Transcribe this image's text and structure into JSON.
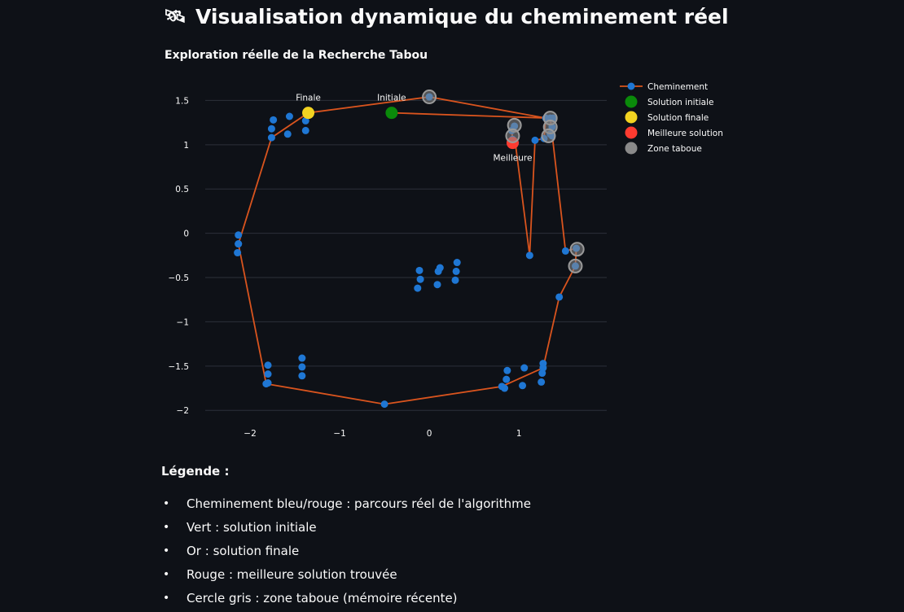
{
  "page": {
    "title_icon": "satellite-icon",
    "title": "Visualisation dynamique du cheminement réel"
  },
  "chart_data": {
    "type": "scatter",
    "title": "Exploration réelle de la Recherche Tabou",
    "xlabel": "",
    "ylabel": "",
    "xlim": [
      -2.5,
      1.98
    ],
    "ylim": [
      -2.2,
      1.66
    ],
    "xticks": [
      -2,
      -1,
      0,
      1
    ],
    "xtick_labels": [
      "−2",
      "−1",
      "0",
      "1"
    ],
    "yticks": [
      1.5,
      1,
      0.5,
      0,
      -0.5,
      -1,
      -1.5,
      -2
    ],
    "ytick_labels": [
      "1.5",
      "1",
      "0.5",
      "0",
      "−0.5",
      "−1",
      "−1.5",
      "−2"
    ],
    "grid": "horizontal",
    "legend_position": "top-right",
    "colors": {
      "path_line": "#d9541e",
      "path_marker": "#1f77d4",
      "initial": "#0a8a0a",
      "final": "#f2d321",
      "best": "#ff3b30",
      "tabu": "#8a8a8a"
    },
    "series": [
      {
        "name": "Cheminement",
        "mode": "lines+markers",
        "x": [
          -0.42,
          1.35,
          1.52,
          1.64,
          1.63,
          1.45,
          1.27,
          0.81,
          -0.5,
          -1.82,
          -2.13,
          -1.76,
          -1.35,
          0.0,
          1.3,
          1.28,
          1.18,
          1.12,
          0.96,
          0.93,
          0.92,
          0.95
        ],
        "y": [
          1.36,
          1.3,
          -0.2,
          -0.17,
          -0.37,
          -0.72,
          -1.52,
          -1.73,
          -1.93,
          -1.7,
          -0.12,
          1.08,
          1.36,
          1.54,
          1.3,
          1.07,
          1.05,
          -0.25,
          1.02,
          1.06,
          1.16,
          1.21
        ]
      },
      {
        "name": "Cheminement",
        "mode": "markers",
        "x": [
          -1.74,
          -1.76,
          -1.56,
          -1.58,
          -1.38,
          -1.38,
          -2.13,
          -2.13,
          -2.14,
          0.12,
          0.09,
          0.31,
          -0.11,
          -0.1,
          0.29,
          -0.13,
          0.1,
          0.3,
          -1.8,
          -1.8,
          -1.8,
          -1.42,
          -1.42,
          -1.42,
          0.87,
          0.86,
          0.84,
          1.06,
          1.04,
          1.27,
          1.26,
          1.25,
          1.38,
          1.37,
          1.37,
          1.35
        ],
        "y": [
          1.28,
          1.18,
          1.32,
          1.12,
          1.27,
          1.16,
          -0.02,
          -0.12,
          -0.22,
          -0.39,
          -0.58,
          -0.33,
          -0.42,
          -0.52,
          -0.53,
          -0.62,
          -0.43,
          -0.43,
          -1.49,
          -1.59,
          -1.69,
          -1.41,
          -1.51,
          -1.61,
          -1.55,
          -1.65,
          -1.75,
          -1.52,
          -1.72,
          -1.47,
          -1.58,
          -1.68,
          1.3,
          1.2,
          1.1,
          1.12
        ]
      },
      {
        "name": "Solution initiale",
        "x": [
          -0.42
        ],
        "y": [
          1.36
        ],
        "label": "Initiale"
      },
      {
        "name": "Solution finale",
        "x": [
          -1.35
        ],
        "y": [
          1.36
        ],
        "label": "Finale"
      },
      {
        "name": "Meilleure solution",
        "x": [
          0.93
        ],
        "y": [
          1.02
        ],
        "label": "Meilleure"
      },
      {
        "name": "Zone taboue",
        "x": [
          0.0,
          0.95,
          0.93,
          1.35,
          1.35,
          1.33,
          1.65,
          1.63
        ],
        "y": [
          1.54,
          1.22,
          1.1,
          1.3,
          1.2,
          1.1,
          -0.18,
          -0.37
        ]
      }
    ]
  },
  "legend_section": {
    "heading": "Légende :",
    "items": [
      "Cheminement bleu/rouge : parcours réel de l'algorithme",
      "Vert : solution initiale",
      "Or : solution finale",
      "Rouge : meilleure solution trouvée",
      "Cercle gris : zone taboue (mémoire récente)"
    ]
  }
}
